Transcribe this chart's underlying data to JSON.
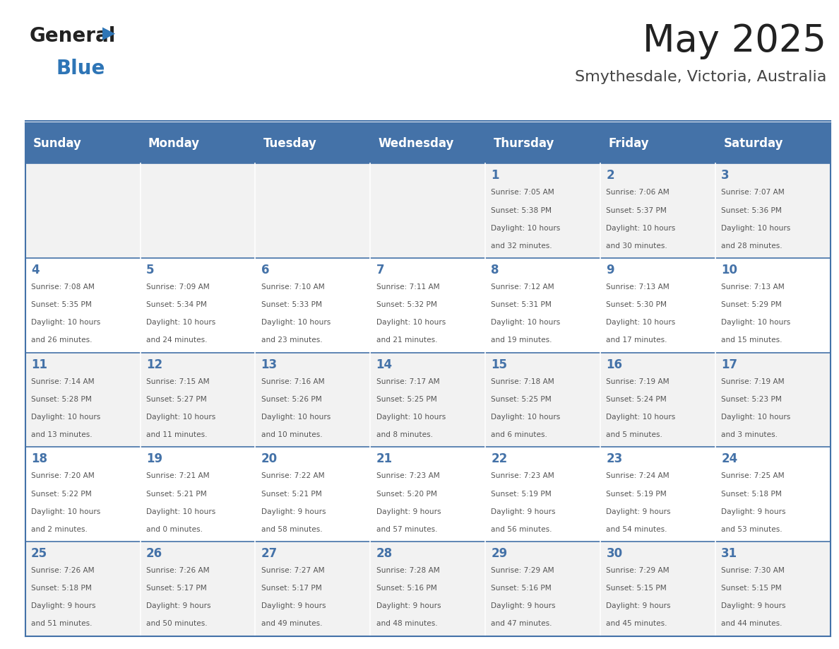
{
  "title": "May 2025",
  "subtitle": "Smythesdale, Victoria, Australia",
  "days_of_week": [
    "Sunday",
    "Monday",
    "Tuesday",
    "Wednesday",
    "Thursday",
    "Friday",
    "Saturday"
  ],
  "header_bg": "#4472A8",
  "header_text": "#FFFFFF",
  "cell_bg_even": "#F2F2F2",
  "cell_bg_odd": "#FFFFFF",
  "cell_text": "#555555",
  "border_color": "#4472A8",
  "title_color": "#222222",
  "subtitle_color": "#444444",
  "logo_general_color": "#222222",
  "logo_blue_color": "#2E75B6",
  "weeks": [
    [
      {
        "day": "",
        "sunrise": "",
        "sunset": "",
        "daylight": ""
      },
      {
        "day": "",
        "sunrise": "",
        "sunset": "",
        "daylight": ""
      },
      {
        "day": "",
        "sunrise": "",
        "sunset": "",
        "daylight": ""
      },
      {
        "day": "",
        "sunrise": "",
        "sunset": "",
        "daylight": ""
      },
      {
        "day": "1",
        "sunrise": "7:05 AM",
        "sunset": "5:38 PM",
        "daylight": "10 hours and 32 minutes."
      },
      {
        "day": "2",
        "sunrise": "7:06 AM",
        "sunset": "5:37 PM",
        "daylight": "10 hours and 30 minutes."
      },
      {
        "day": "3",
        "sunrise": "7:07 AM",
        "sunset": "5:36 PM",
        "daylight": "10 hours and 28 minutes."
      }
    ],
    [
      {
        "day": "4",
        "sunrise": "7:08 AM",
        "sunset": "5:35 PM",
        "daylight": "10 hours and 26 minutes."
      },
      {
        "day": "5",
        "sunrise": "7:09 AM",
        "sunset": "5:34 PM",
        "daylight": "10 hours and 24 minutes."
      },
      {
        "day": "6",
        "sunrise": "7:10 AM",
        "sunset": "5:33 PM",
        "daylight": "10 hours and 23 minutes."
      },
      {
        "day": "7",
        "sunrise": "7:11 AM",
        "sunset": "5:32 PM",
        "daylight": "10 hours and 21 minutes."
      },
      {
        "day": "8",
        "sunrise": "7:12 AM",
        "sunset": "5:31 PM",
        "daylight": "10 hours and 19 minutes."
      },
      {
        "day": "9",
        "sunrise": "7:13 AM",
        "sunset": "5:30 PM",
        "daylight": "10 hours and 17 minutes."
      },
      {
        "day": "10",
        "sunrise": "7:13 AM",
        "sunset": "5:29 PM",
        "daylight": "10 hours and 15 minutes."
      }
    ],
    [
      {
        "day": "11",
        "sunrise": "7:14 AM",
        "sunset": "5:28 PM",
        "daylight": "10 hours and 13 minutes."
      },
      {
        "day": "12",
        "sunrise": "7:15 AM",
        "sunset": "5:27 PM",
        "daylight": "10 hours and 11 minutes."
      },
      {
        "day": "13",
        "sunrise": "7:16 AM",
        "sunset": "5:26 PM",
        "daylight": "10 hours and 10 minutes."
      },
      {
        "day": "14",
        "sunrise": "7:17 AM",
        "sunset": "5:25 PM",
        "daylight": "10 hours and 8 minutes."
      },
      {
        "day": "15",
        "sunrise": "7:18 AM",
        "sunset": "5:25 PM",
        "daylight": "10 hours and 6 minutes."
      },
      {
        "day": "16",
        "sunrise": "7:19 AM",
        "sunset": "5:24 PM",
        "daylight": "10 hours and 5 minutes."
      },
      {
        "day": "17",
        "sunrise": "7:19 AM",
        "sunset": "5:23 PM",
        "daylight": "10 hours and 3 minutes."
      }
    ],
    [
      {
        "day": "18",
        "sunrise": "7:20 AM",
        "sunset": "5:22 PM",
        "daylight": "10 hours and 2 minutes."
      },
      {
        "day": "19",
        "sunrise": "7:21 AM",
        "sunset": "5:21 PM",
        "daylight": "10 hours and 0 minutes."
      },
      {
        "day": "20",
        "sunrise": "7:22 AM",
        "sunset": "5:21 PM",
        "daylight": "9 hours and 58 minutes."
      },
      {
        "day": "21",
        "sunrise": "7:23 AM",
        "sunset": "5:20 PM",
        "daylight": "9 hours and 57 minutes."
      },
      {
        "day": "22",
        "sunrise": "7:23 AM",
        "sunset": "5:19 PM",
        "daylight": "9 hours and 56 minutes."
      },
      {
        "day": "23",
        "sunrise": "7:24 AM",
        "sunset": "5:19 PM",
        "daylight": "9 hours and 54 minutes."
      },
      {
        "day": "24",
        "sunrise": "7:25 AM",
        "sunset": "5:18 PM",
        "daylight": "9 hours and 53 minutes."
      }
    ],
    [
      {
        "day": "25",
        "sunrise": "7:26 AM",
        "sunset": "5:18 PM",
        "daylight": "9 hours and 51 minutes."
      },
      {
        "day": "26",
        "sunrise": "7:26 AM",
        "sunset": "5:17 PM",
        "daylight": "9 hours and 50 minutes."
      },
      {
        "day": "27",
        "sunrise": "7:27 AM",
        "sunset": "5:17 PM",
        "daylight": "9 hours and 49 minutes."
      },
      {
        "day": "28",
        "sunrise": "7:28 AM",
        "sunset": "5:16 PM",
        "daylight": "9 hours and 48 minutes."
      },
      {
        "day": "29",
        "sunrise": "7:29 AM",
        "sunset": "5:16 PM",
        "daylight": "9 hours and 47 minutes."
      },
      {
        "day": "30",
        "sunrise": "7:29 AM",
        "sunset": "5:15 PM",
        "daylight": "9 hours and 45 minutes."
      },
      {
        "day": "31",
        "sunrise": "7:30 AM",
        "sunset": "5:15 PM",
        "daylight": "9 hours and 44 minutes."
      }
    ]
  ]
}
